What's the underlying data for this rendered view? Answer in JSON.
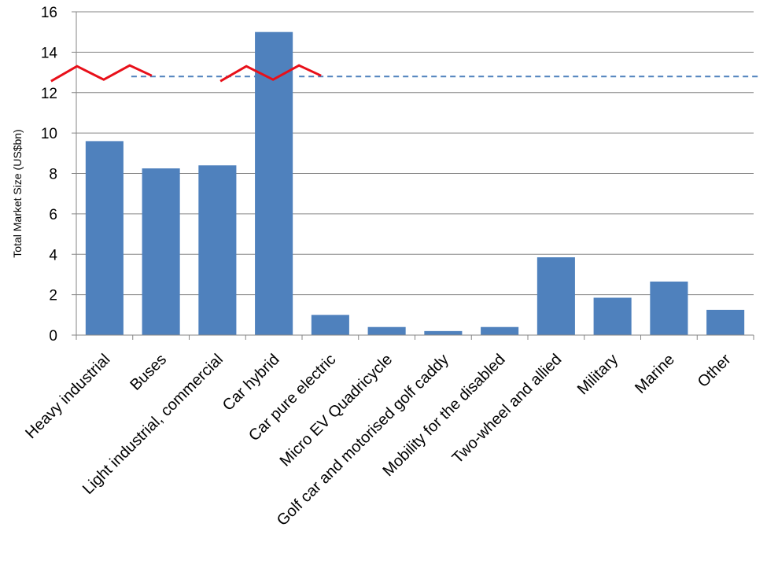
{
  "chart_data": {
    "type": "bar",
    "title": "",
    "xlabel": "",
    "ylabel": "Total Market Size (US$bn)",
    "ylim": [
      0,
      16
    ],
    "yticks": [
      0,
      2,
      4,
      6,
      8,
      10,
      12,
      14,
      16
    ],
    "grid": true,
    "categories": [
      "Heavy industrial",
      "Buses",
      "Light industrial, commercial",
      "Car hybrid",
      "Car pure electric",
      "Micro EV Quadricycle",
      "Golf car and motorised golf caddy",
      "Mobility for the disabled",
      "Two-wheel and allied",
      "Military",
      "Marine",
      "Other"
    ],
    "values": [
      9.6,
      8.25,
      8.4,
      15.0,
      1.0,
      0.4,
      0.2,
      0.4,
      3.85,
      1.85,
      2.65,
      1.25
    ],
    "reference_line": {
      "value": 12.8,
      "style": "dashed"
    },
    "axis_breaks": [
      "Heavy industrial",
      "Car hybrid"
    ],
    "colors": {
      "bar": "#4f81bd",
      "grid": "#868686",
      "reference_line": "#4f81bd",
      "break_marker": "#e8101a"
    }
  }
}
